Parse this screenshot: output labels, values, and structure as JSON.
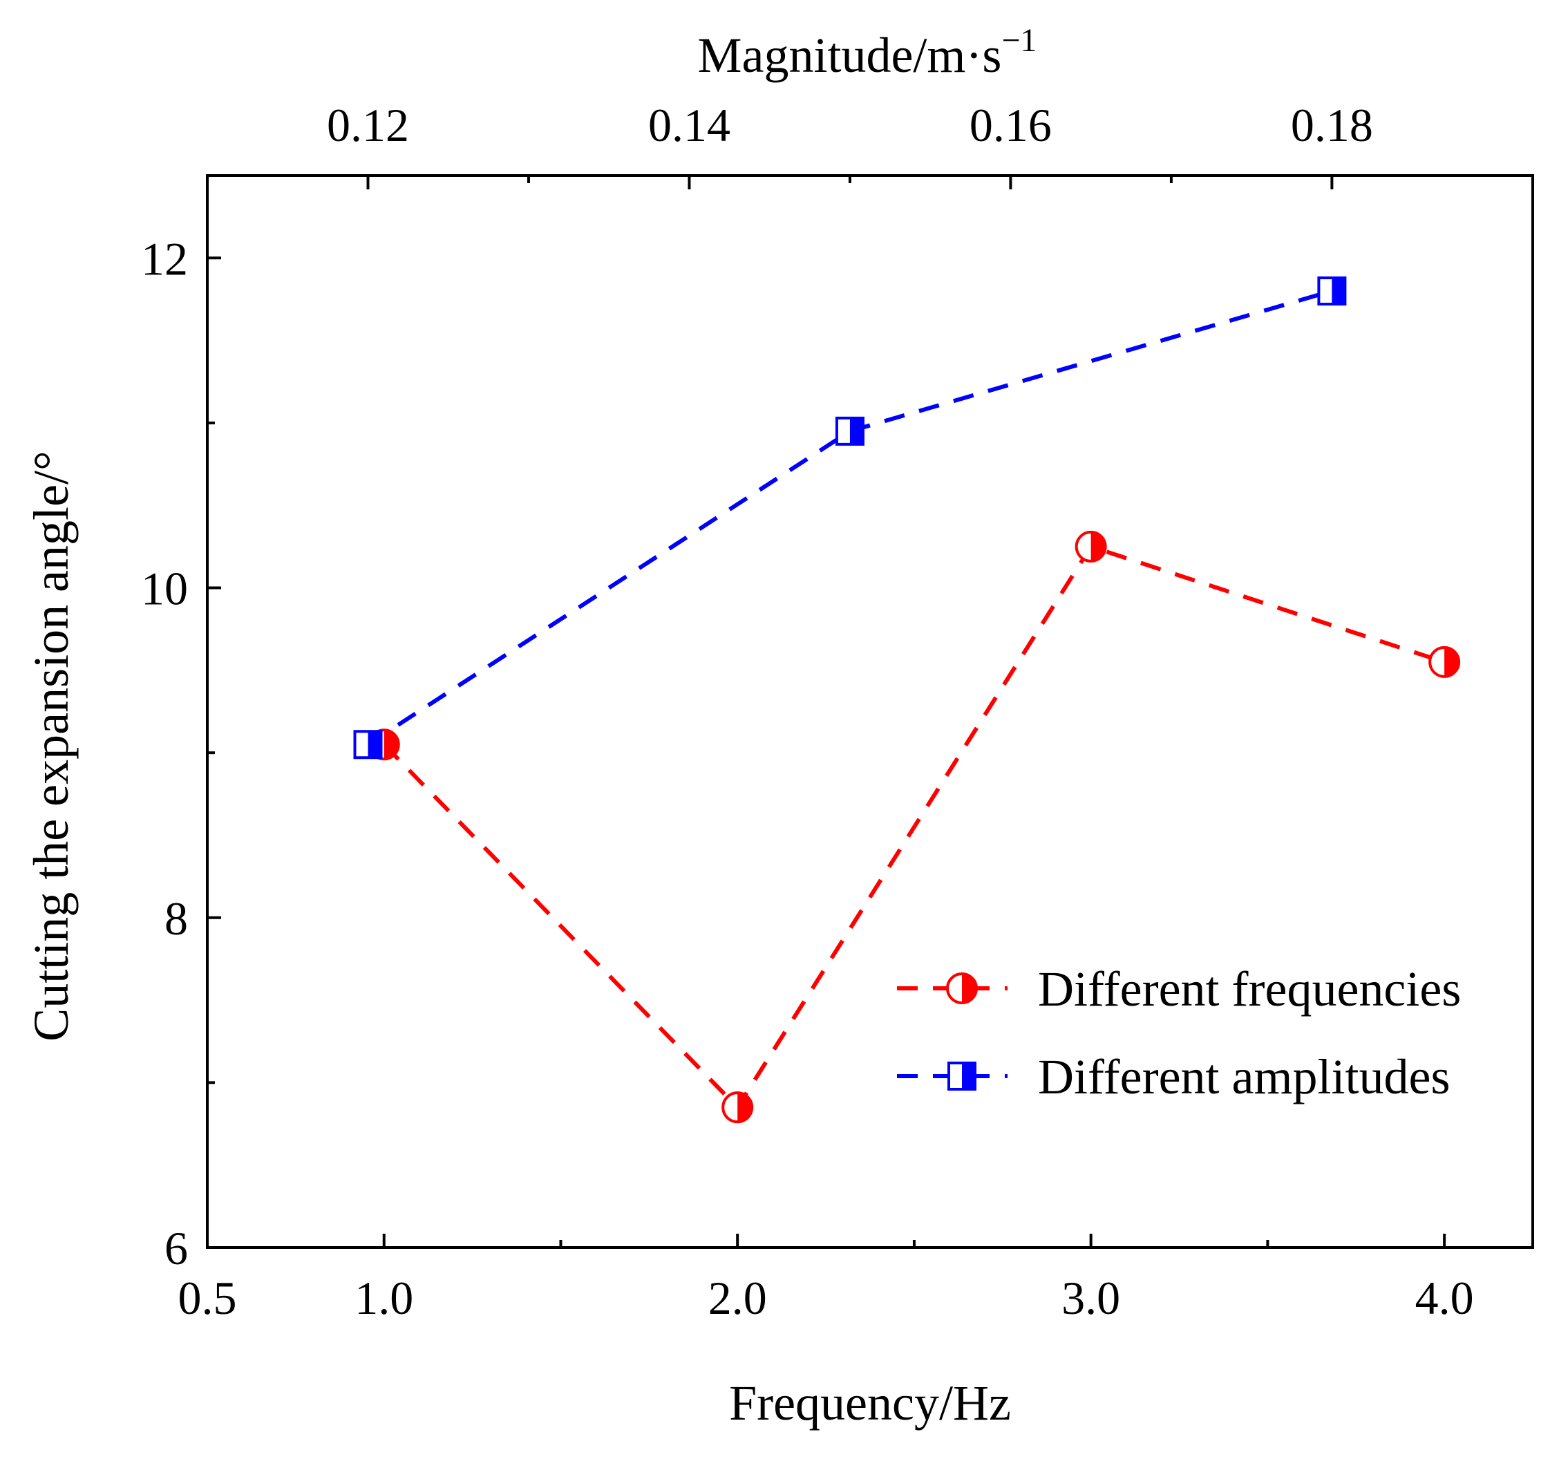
{
  "chart_data": {
    "type": "line",
    "title": "",
    "xlabel": "Frequency/Hz",
    "x2label": "Magnitude/m·s",
    "x2label_superscript": "−1",
    "ylabel": "Cutting the expansion angle/°",
    "xlim": [
      0.5,
      4.25
    ],
    "x2lim": [
      0.11,
      0.1925
    ],
    "ylim": [
      6,
      12.5
    ],
    "x_ticks": [
      0.5,
      1.0,
      2.0,
      3.0,
      4.0
    ],
    "x_tick_labels": [
      "0.5",
      "1.0",
      "2.0",
      "3.0",
      "4.0"
    ],
    "x_minor_ticks": [
      1.5,
      2.5,
      3.5
    ],
    "x2_ticks": [
      0.12,
      0.14,
      0.16,
      0.18
    ],
    "x2_tick_labels": [
      "0.12",
      "0.14",
      "0.16",
      "0.18"
    ],
    "x2_minor_ticks": [
      0.13,
      0.15,
      0.17
    ],
    "y_ticks": [
      6,
      8,
      10,
      12
    ],
    "y_tick_labels": [
      "6",
      "8",
      "10",
      "12"
    ],
    "y_minor_ticks": [
      7,
      9,
      11
    ],
    "grid": false,
    "legend_position": "bottom-right",
    "series": [
      {
        "name": "Different frequencies",
        "axis": "bottom",
        "color": "#ff0000",
        "marker": "half-filled-circle",
        "line_style": "dashed",
        "x": [
          1.0,
          2.0,
          3.0,
          4.0
        ],
        "y": [
          9.05,
          6.85,
          10.25,
          9.55
        ]
      },
      {
        "name": "Different amplitudes",
        "axis": "top",
        "color": "#0000ff",
        "marker": "half-filled-square",
        "line_style": "dashed",
        "x": [
          0.12,
          0.15,
          0.18
        ],
        "y": [
          9.05,
          10.95,
          11.8
        ]
      }
    ]
  }
}
